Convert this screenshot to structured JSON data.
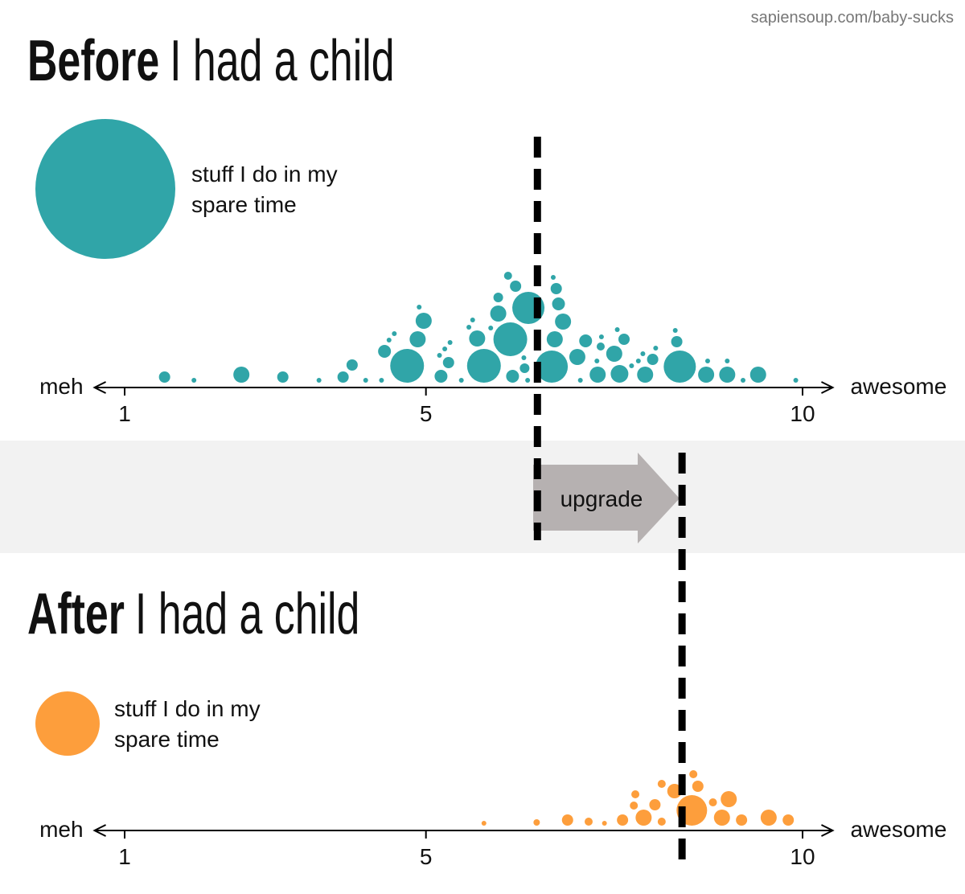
{
  "source": "sapiensoup.com/baby-sucks",
  "annotation": "upgrade",
  "chart_data": [
    {
      "type": "scatter",
      "title_lead": "Before",
      "title": "I had a child",
      "legend": [
        "stuff I do in my",
        "spare time"
      ],
      "x_left_label": "meh",
      "x_right_label": "awesome",
      "xlim": [
        0.6,
        10.4
      ],
      "xticks": [
        1,
        5,
        10
      ],
      "mean": 6.48,
      "color": "#30a5a8",
      "x": [
        1.53,
        1.92,
        2.55,
        3.1,
        3.58,
        3.9,
        4.02,
        4.2,
        4.41,
        4.45,
        4.51,
        4.58,
        4.75,
        4.89,
        4.91,
        4.97,
        5.18,
        5.2,
        5.25,
        5.3,
        5.32,
        5.47,
        5.57,
        5.62,
        5.68,
        5.77,
        5.86,
        5.96,
        5.96,
        6.09,
        6.12,
        6.15,
        6.19,
        6.3,
        6.31,
        6.35,
        6.36,
        6.67,
        6.69,
        6.71,
        6.73,
        6.76,
        6.82,
        7.01,
        7.05,
        7.12,
        7.27,
        7.28,
        7.32,
        7.33,
        7.5,
        7.54,
        7.57,
        7.63,
        7.73,
        7.82,
        7.88,
        7.91,
        8.01,
        8.05,
        8.31,
        8.33,
        8.37,
        8.72,
        8.74,
        9.0,
        9.0,
        9.21,
        9.41,
        9.91
      ],
      "sizes": [
        7,
        3,
        10,
        7,
        3,
        7,
        7,
        3,
        3,
        8,
        3,
        3,
        21,
        10,
        3,
        10,
        3,
        8,
        3,
        7,
        3,
        3,
        3,
        3,
        10,
        21,
        3,
        10,
        6,
        5,
        21,
        8,
        7,
        3,
        6,
        3,
        20,
        20,
        3,
        10,
        7,
        8,
        10,
        10,
        3,
        8,
        3,
        10,
        5,
        3,
        10,
        3,
        11,
        7,
        3,
        3,
        3,
        10,
        7,
        3,
        3,
        7,
        20,
        10,
        3,
        10,
        3,
        3,
        10,
        3
      ]
    },
    {
      "type": "scatter",
      "title_lead": "After",
      "title": "I had a child",
      "legend": [
        "stuff I do in my",
        "spare time"
      ],
      "x_left_label": "meh",
      "x_right_label": "awesome",
      "xlim": [
        0.6,
        10.4
      ],
      "xticks": [
        1,
        5,
        10
      ],
      "mean": 8.4,
      "color": "#fd9e3c",
      "x": [
        5.77,
        6.47,
        6.88,
        7.16,
        7.37,
        7.61,
        7.76,
        7.78,
        7.89,
        8.04,
        8.13,
        8.13,
        8.3,
        8.53,
        8.55,
        8.61,
        8.81,
        8.93,
        9.02,
        9.19,
        9.55,
        9.81
      ],
      "sizes": [
        3,
        4,
        7,
        5,
        3,
        7,
        5,
        5,
        10,
        7,
        5,
        5,
        9,
        19,
        5,
        7,
        5,
        10,
        10,
        7,
        10,
        7
      ]
    }
  ]
}
